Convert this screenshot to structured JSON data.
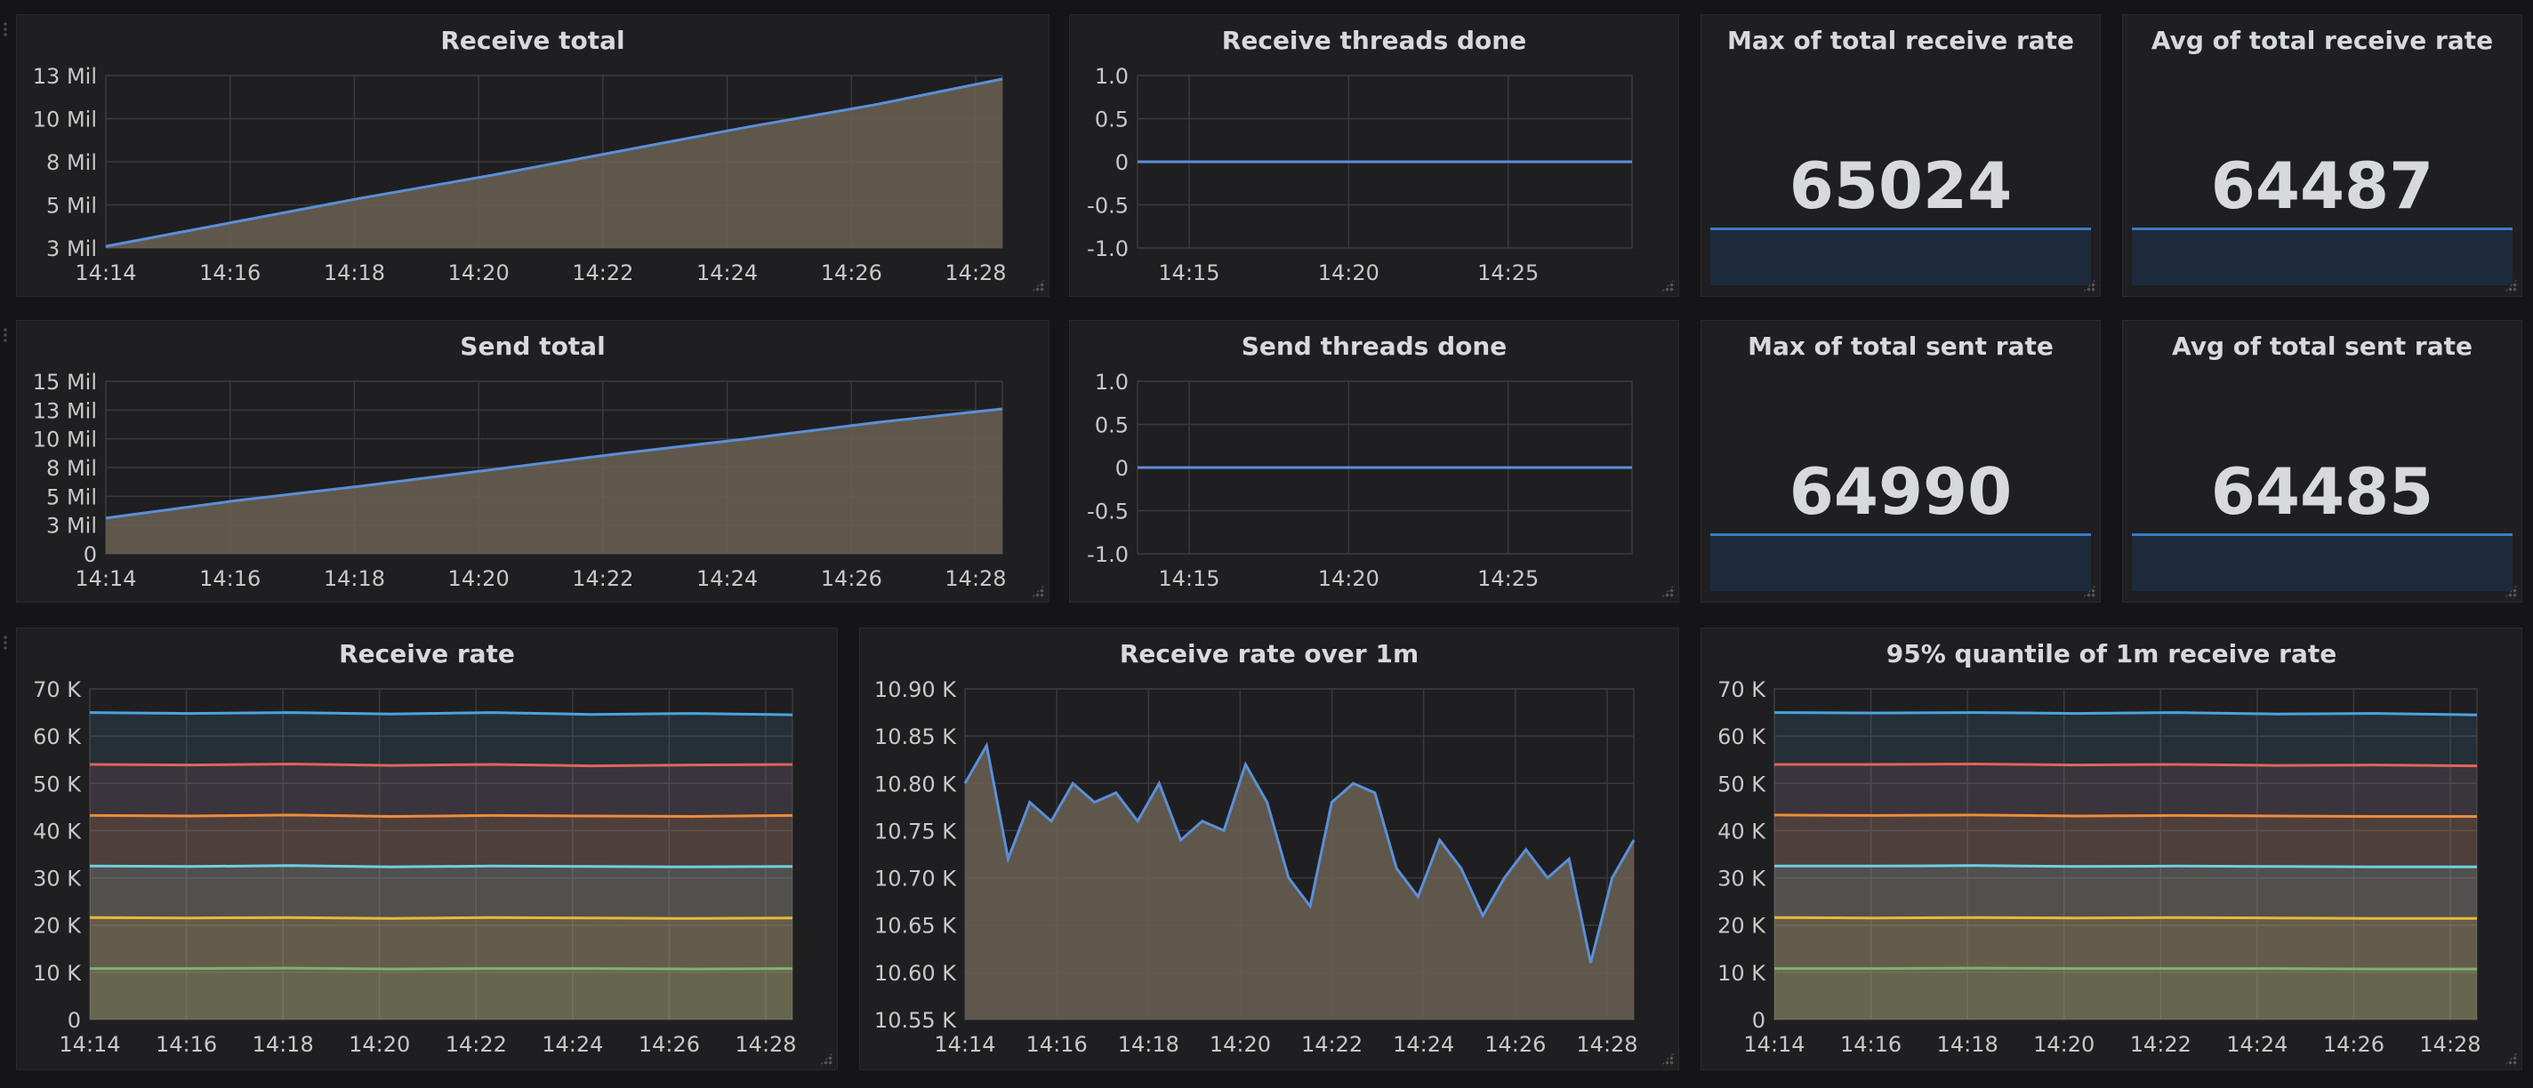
{
  "panels": {
    "receive_total": {
      "title": "Receive total"
    },
    "receive_threads": {
      "title": "Receive threads done"
    },
    "max_receive": {
      "title": "Max of total receive rate",
      "value": "65024"
    },
    "avg_receive": {
      "title": "Avg of total receive rate",
      "value": "64487"
    },
    "send_total": {
      "title": "Send total"
    },
    "send_threads": {
      "title": "Send threads done"
    },
    "max_sent": {
      "title": "Max of total sent rate",
      "value": "64990"
    },
    "avg_sent": {
      "title": "Avg of total sent rate",
      "value": "64485"
    },
    "receive_rate": {
      "title": "Receive rate"
    },
    "receive_rate_1m": {
      "title": "Receive rate over 1m"
    },
    "quantile": {
      "title": "95% quantile of 1m receive rate"
    }
  },
  "colors": {
    "blue": "#5b8fd8",
    "area_fill": "#6b6152",
    "series": [
      "#4aa3df",
      "#e0645a",
      "#ef8b3c",
      "#6ed0e0",
      "#eab839",
      "#7eb26d"
    ]
  },
  "chart_data": [
    {
      "id": "receive_total",
      "type": "area",
      "x": [
        "14:14",
        "14:16",
        "14:18",
        "14:20",
        "14:22",
        "14:24",
        "14:26",
        "14:28"
      ],
      "xlabels": [
        "14:14",
        "14:16",
        "14:18",
        "14:20",
        "14:22",
        "14:24",
        "14:26",
        "14:28"
      ],
      "yticks": [
        "3 Mil",
        "5 Mil",
        "8 Mil",
        "10 Mil",
        "13 Mil"
      ],
      "ylim": [
        3000000,
        13000000
      ],
      "series": [
        {
          "values": [
            3100000,
            4500000,
            5900000,
            7200000,
            8600000,
            10000000,
            11300000,
            12800000
          ]
        }
      ]
    },
    {
      "id": "receive_threads",
      "type": "line",
      "xlabels": [
        "14:15",
        "14:20",
        "14:25"
      ],
      "yticks": [
        "-1.0",
        "-0.5",
        "0",
        "0.5",
        "1.0"
      ],
      "ylim": [
        -1,
        1
      ],
      "series": [
        {
          "values": [
            0,
            0
          ]
        }
      ]
    },
    {
      "id": "send_total",
      "type": "area",
      "xlabels": [
        "14:14",
        "14:16",
        "14:18",
        "14:20",
        "14:22",
        "14:24",
        "14:26",
        "14:28"
      ],
      "yticks": [
        "0",
        "3 Mil",
        "5 Mil",
        "8 Mil",
        "10 Mil",
        "13 Mil",
        "15 Mil"
      ],
      "ylim": [
        0,
        15000000
      ],
      "series": [
        {
          "values": [
            3100000,
            4600000,
            5900000,
            7300000,
            8700000,
            10000000,
            11400000,
            12600000
          ]
        }
      ]
    },
    {
      "id": "send_threads",
      "type": "line",
      "xlabels": [
        "14:15",
        "14:20",
        "14:25"
      ],
      "yticks": [
        "-1.0",
        "-0.5",
        "0",
        "0.5",
        "1.0"
      ],
      "ylim": [
        -1,
        1
      ],
      "series": [
        {
          "values": [
            0,
            0
          ]
        }
      ]
    },
    {
      "id": "receive_rate",
      "type": "area",
      "xlabels": [
        "14:14",
        "14:16",
        "14:18",
        "14:20",
        "14:22",
        "14:24",
        "14:26",
        "14:28"
      ],
      "yticks": [
        "0",
        "10 K",
        "20 K",
        "30 K",
        "40 K",
        "50 K",
        "60 K",
        "70 K"
      ],
      "ylim": [
        0,
        70000
      ],
      "series": [
        {
          "values": [
            65000,
            64800,
            65000,
            64700,
            65000,
            64600,
            64800,
            64500
          ]
        },
        {
          "values": [
            54000,
            53900,
            54100,
            53800,
            54000,
            53700,
            53900,
            54000
          ]
        },
        {
          "values": [
            43200,
            43100,
            43300,
            43000,
            43200,
            43100,
            43000,
            43200
          ]
        },
        {
          "values": [
            32500,
            32400,
            32600,
            32300,
            32500,
            32400,
            32300,
            32400
          ]
        },
        {
          "values": [
            21600,
            21500,
            21600,
            21400,
            21600,
            21500,
            21400,
            21500
          ]
        },
        {
          "values": [
            10800,
            10800,
            10900,
            10700,
            10800,
            10800,
            10700,
            10800
          ]
        }
      ]
    },
    {
      "id": "receive_rate_1m",
      "type": "area",
      "xlabels": [
        "14:14",
        "14:16",
        "14:18",
        "14:20",
        "14:22",
        "14:24",
        "14:26",
        "14:28"
      ],
      "yticks": [
        "10.55 K",
        "10.60 K",
        "10.65 K",
        "10.70 K",
        "10.75 K",
        "10.80 K",
        "10.85 K",
        "10.90 K"
      ],
      "ylim": [
        10550,
        10900
      ],
      "series": [
        {
          "values": [
            10800,
            10840,
            10720,
            10780,
            10760,
            10800,
            10780,
            10790,
            10760,
            10800,
            10740,
            10760,
            10750,
            10820,
            10780,
            10700,
            10670,
            10780,
            10800,
            10790,
            10710,
            10680,
            10740,
            10710,
            10660,
            10700,
            10730,
            10700,
            10720,
            10610,
            10700,
            10740
          ]
        }
      ]
    },
    {
      "id": "quantile",
      "type": "area",
      "xlabels": [
        "14:14",
        "14:16",
        "14:18",
        "14:20",
        "14:22",
        "14:24",
        "14:26",
        "14:28"
      ],
      "yticks": [
        "0",
        "10 K",
        "20 K",
        "30 K",
        "40 K",
        "50 K",
        "60 K",
        "70 K"
      ],
      "ylim": [
        0,
        70000
      ],
      "series": [
        {
          "values": [
            65000,
            64900,
            65000,
            64800,
            65000,
            64700,
            64800,
            64500
          ]
        },
        {
          "values": [
            54000,
            54000,
            54100,
            53900,
            54000,
            53800,
            53900,
            53700
          ]
        },
        {
          "values": [
            43300,
            43200,
            43300,
            43100,
            43200,
            43100,
            43000,
            43000
          ]
        },
        {
          "values": [
            32500,
            32500,
            32600,
            32400,
            32500,
            32400,
            32300,
            32300
          ]
        },
        {
          "values": [
            21600,
            21500,
            21600,
            21500,
            21600,
            21500,
            21400,
            21400
          ]
        },
        {
          "values": [
            10800,
            10800,
            10900,
            10800,
            10800,
            10800,
            10700,
            10700
          ]
        }
      ]
    }
  ]
}
